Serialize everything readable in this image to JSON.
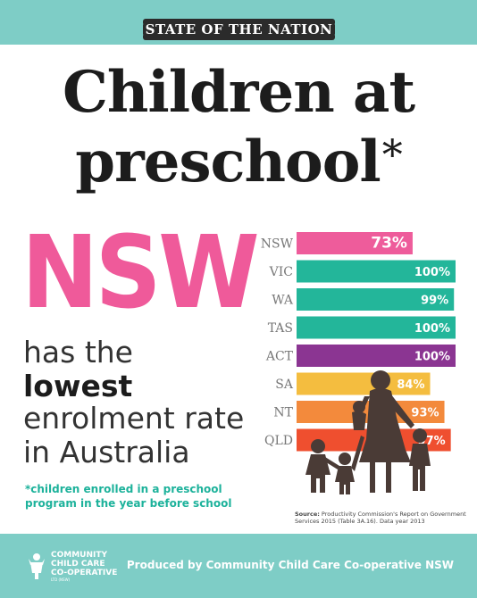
{
  "banner": "STATE OF THE NATION",
  "title": {
    "line1": "Children at",
    "line2": "preschool",
    "asterisk": "*"
  },
  "left": {
    "big_label": "NSW",
    "line1": "has the",
    "line2": "lowest",
    "line3": "enrolment rate",
    "line4": "in Australia"
  },
  "footnote": "*children enrolled in a preschool program in the year before school",
  "source": {
    "label": "Source:",
    "text": "Productivity Commission's Report on Government Services 2015 (Table 3A.16). Data year 2013"
  },
  "footer": {
    "logo_line1": "COMMUNITY",
    "logo_line2": "CHILD CARE",
    "logo_line3": "CO-OPERATIVE",
    "logo_small": "LTD (NSW)",
    "produced_by": "Produced by Community Child Care Co-operative NSW"
  },
  "colors": {
    "NSW": "#ee5c9b",
    "VIC": "#23b69a",
    "WA": "#23b69a",
    "TAS": "#23b69a",
    "ACT": "#8b3592",
    "SA": "#f4bd3f",
    "NT": "#f38a3c",
    "QLD": "#ef4f2f",
    "teal_band": "#7ecdc6",
    "silhouette": "#4a3b36"
  },
  "chart_data": {
    "type": "bar",
    "orientation": "horizontal",
    "categories": [
      "NSW",
      "VIC",
      "WA",
      "TAS",
      "ACT",
      "SA",
      "NT",
      "QLD"
    ],
    "values": [
      73,
      100,
      99,
      100,
      100,
      84,
      93,
      97
    ],
    "value_labels": [
      "73%",
      "100%",
      "99%",
      "100%",
      "100%",
      "84%",
      "93%",
      "97%"
    ],
    "xlim": [
      0,
      100
    ],
    "grid": false,
    "legend": "none"
  },
  "icons": [
    "family-silhouette-icon",
    "co-op-logo-icon"
  ]
}
